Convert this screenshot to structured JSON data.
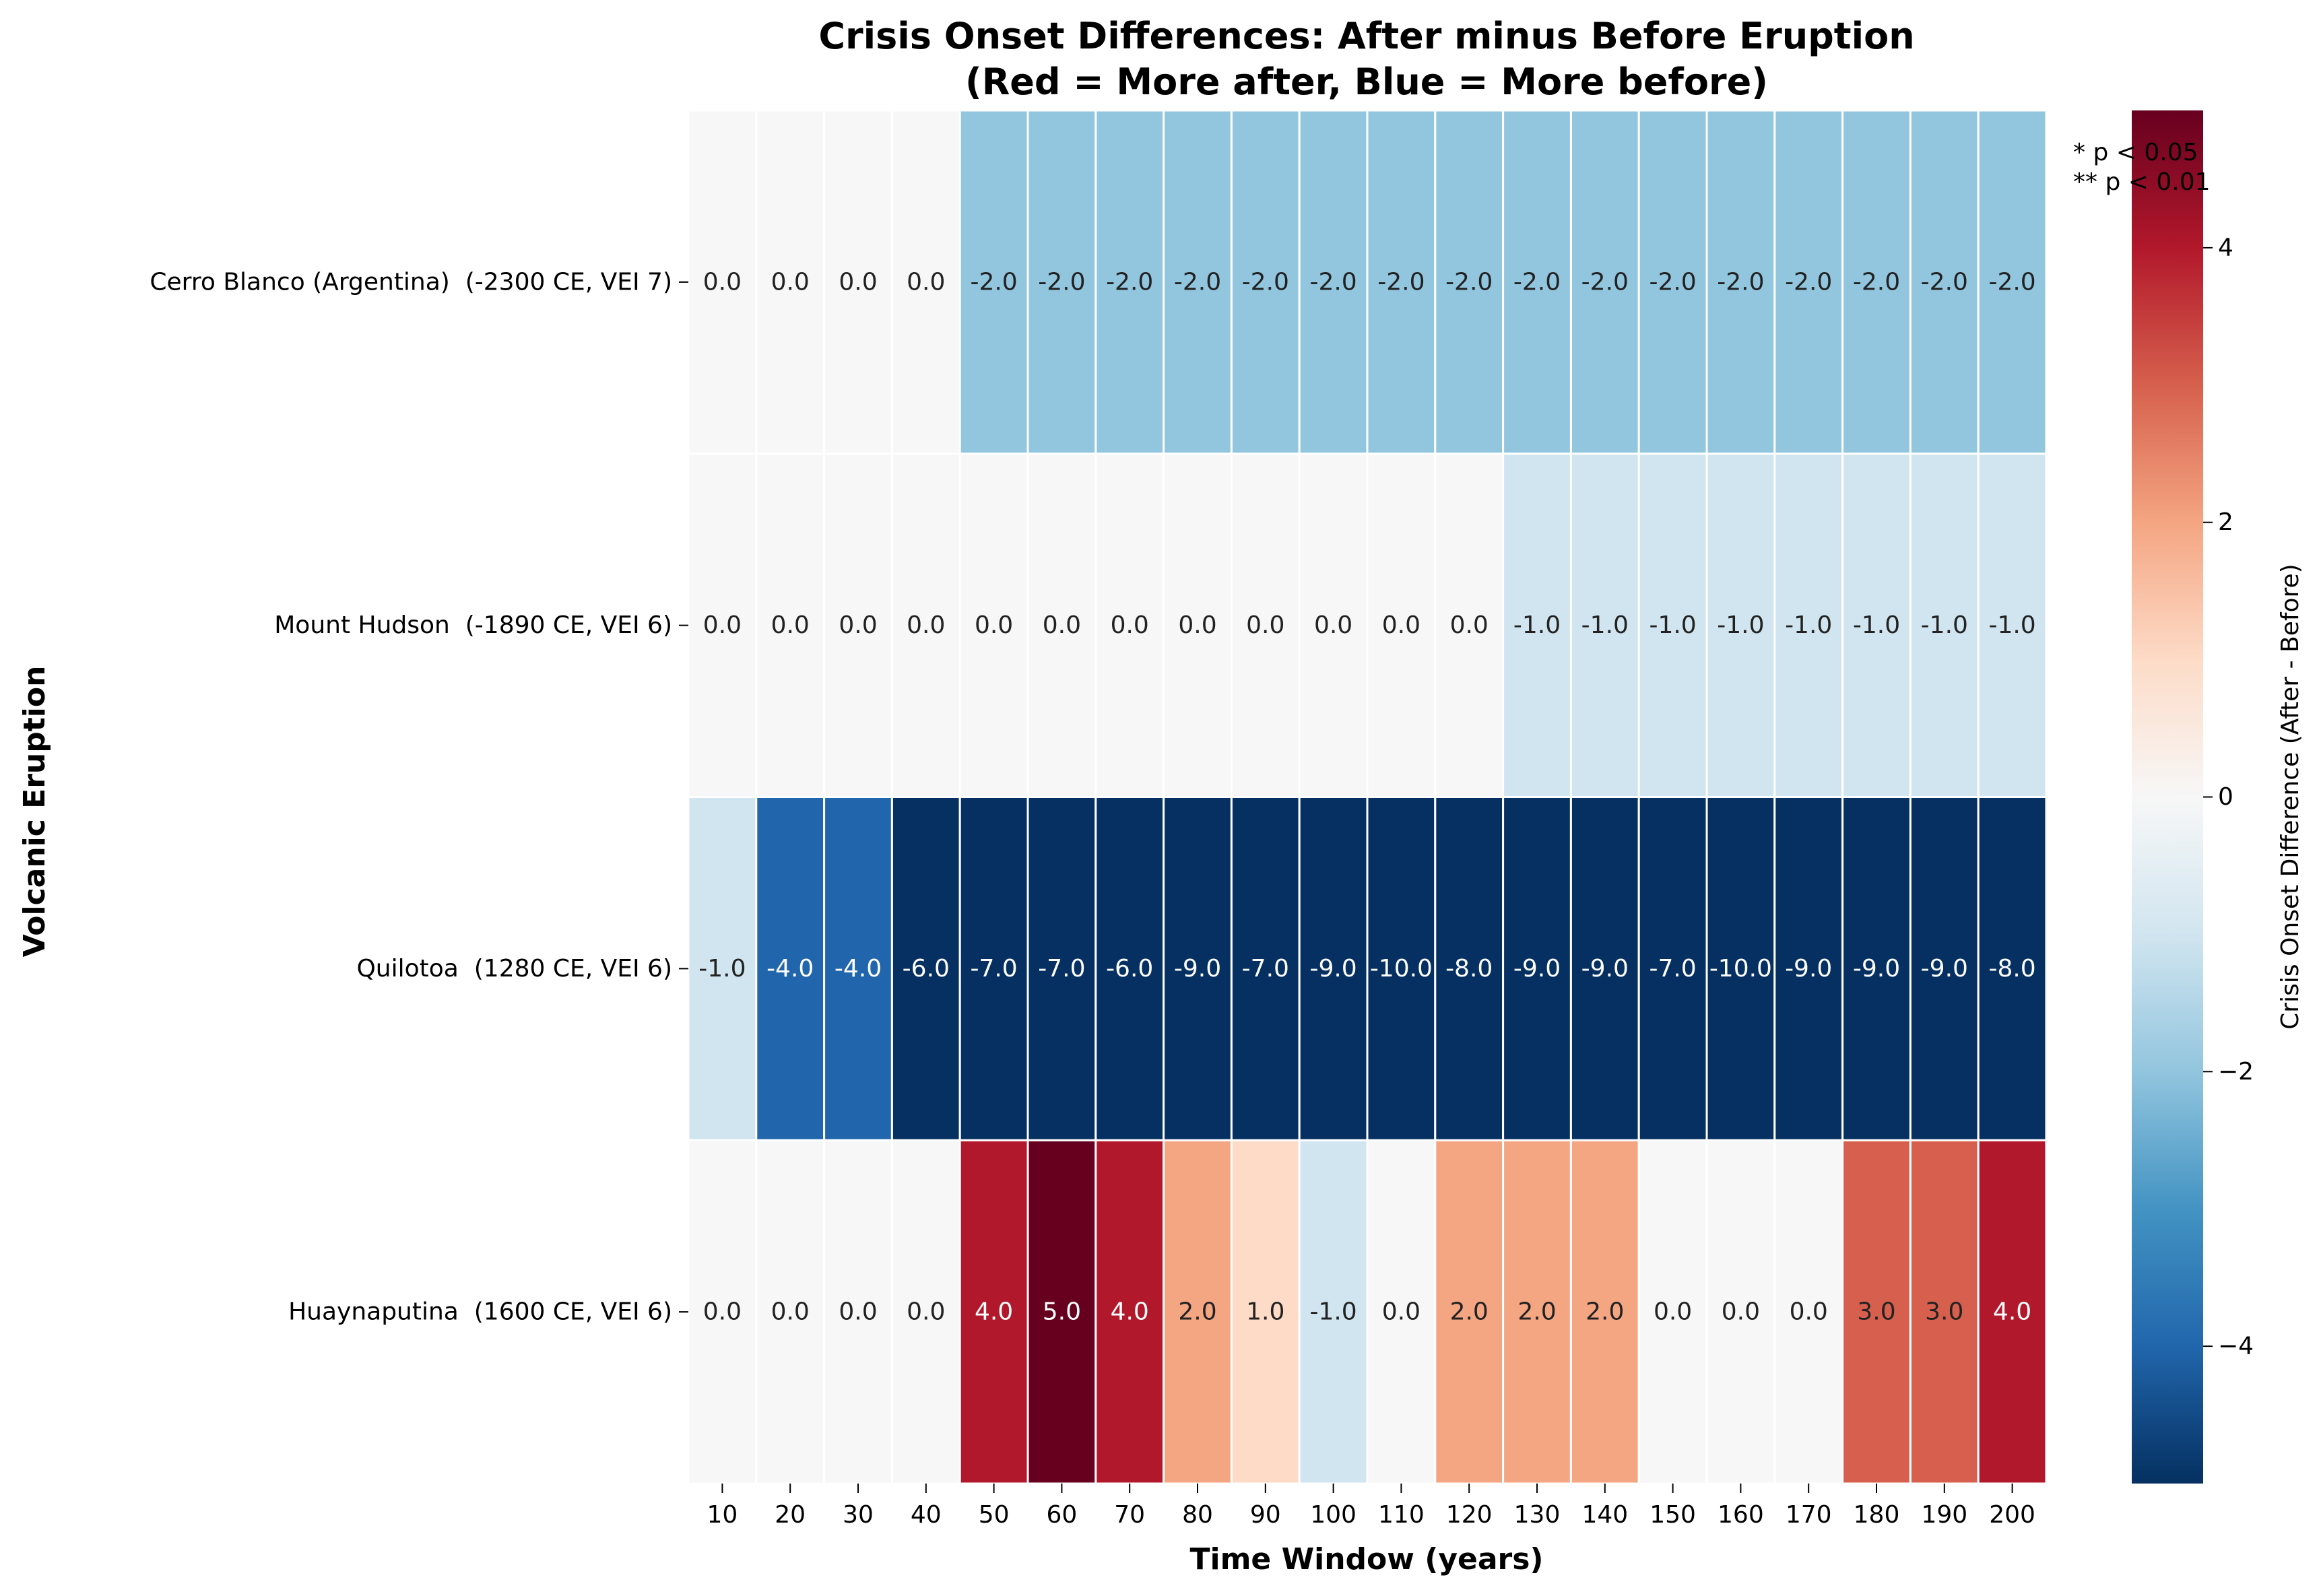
{
  "chart_data": {
    "type": "heatmap",
    "title": "Crisis Onset Differences: After minus Before Eruption",
    "subtitle": "(Red = More after, Blue = More before)",
    "xlabel": "Time Window (years)",
    "ylabel": "Volcanic Eruption",
    "x": [
      "10",
      "20",
      "30",
      "40",
      "50",
      "60",
      "70",
      "80",
      "90",
      "100",
      "110",
      "120",
      "130",
      "140",
      "150",
      "160",
      "170",
      "180",
      "190",
      "200"
    ],
    "y": [
      "Cerro Blanco (Argentina)  (-2300 CE, VEI 7)",
      "Mount Hudson  (-1890 CE, VEI 6)",
      "Quilotoa  (1280 CE, VEI 6)",
      "Huaynaputina  (1600 CE, VEI 6)"
    ],
    "values": [
      [
        0,
        0,
        0,
        0,
        -2,
        -2,
        -2,
        -2,
        -2,
        -2,
        -2,
        -2,
        -2,
        -2,
        -2,
        -2,
        -2,
        -2,
        -2,
        -2
      ],
      [
        0,
        0,
        0,
        0,
        0,
        0,
        0,
        0,
        0,
        0,
        0,
        0,
        -1,
        -1,
        -1,
        -1,
        -1,
        -1,
        -1,
        -1
      ],
      [
        -1,
        -4,
        -4,
        -6,
        -7,
        -7,
        -6,
        -9,
        -7,
        -9,
        -10,
        -8,
        -9,
        -9,
        -7,
        -10,
        -9,
        -9,
        -9,
        -8
      ],
      [
        0,
        0,
        0,
        0,
        4,
        5,
        4,
        2,
        1,
        -1,
        0,
        2,
        2,
        2,
        0,
        0,
        0,
        3,
        3,
        4
      ]
    ],
    "value_format": "one decimal",
    "colorscale": "RdBu_r",
    "vmin": -5,
    "vmax": 5,
    "colorbar": {
      "label": "Crisis Onset Difference (After - Before)",
      "ticks": [
        -4,
        -2,
        0,
        2,
        4
      ],
      "tick_labels": [
        "−4",
        "−2",
        "0",
        "2",
        "4"
      ]
    },
    "annotation_lines": [
      "* p < 0.05",
      "** p < 0.01"
    ],
    "grid": false
  }
}
